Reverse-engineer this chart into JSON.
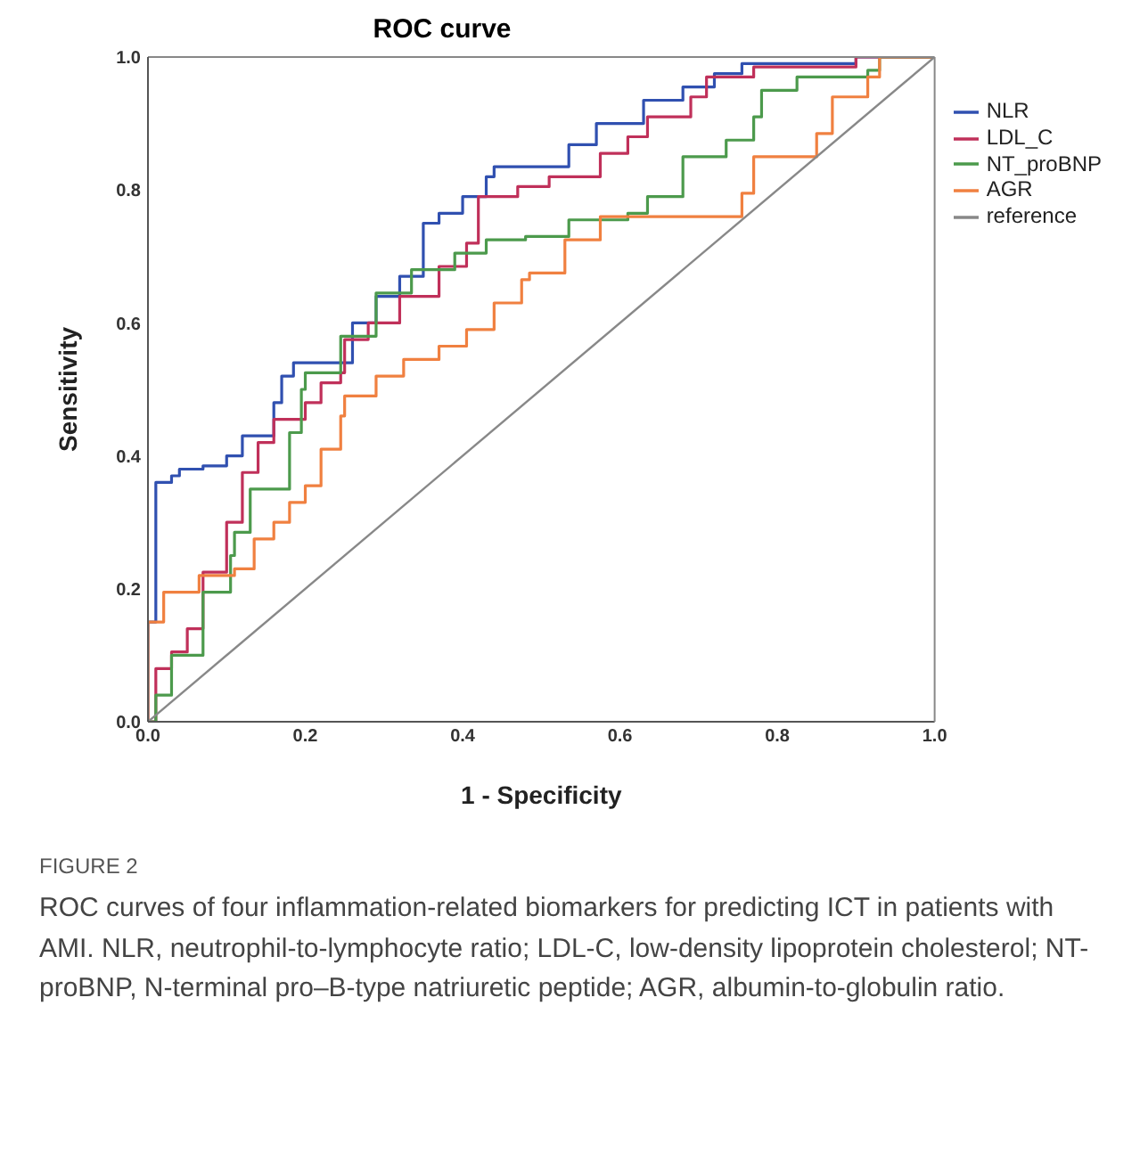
{
  "chart_data": {
    "type": "step",
    "title": "ROC  curve",
    "xlabel": "1 - Specificity",
    "ylabel": "Sensitivity",
    "xlim": [
      0,
      1
    ],
    "ylim": [
      0,
      1
    ],
    "xticks": [
      {
        "value": 0,
        "label": "0.0"
      },
      {
        "value": 0.2,
        "label": "0.2"
      },
      {
        "value": 0.4,
        "label": "0.4"
      },
      {
        "value": 0.6,
        "label": "0.6"
      },
      {
        "value": 0.8,
        "label": "0.8"
      },
      {
        "value": 1,
        "label": "1.0"
      }
    ],
    "yticks": [
      {
        "value": 0,
        "label": "0.0"
      },
      {
        "value": 0.2,
        "label": "0.2"
      },
      {
        "value": 0.4,
        "label": "0.4"
      },
      {
        "value": 0.6,
        "label": "0.6"
      },
      {
        "value": 0.8,
        "label": "0.8"
      },
      {
        "value": 1,
        "label": "1.0"
      }
    ],
    "legend": "right",
    "marker": "none",
    "line_style": "solid",
    "series": [
      {
        "name": "NLR",
        "color": "#3050b0",
        "x": [
          0,
          0,
          0.01,
          0.01,
          0.03,
          0.04,
          0.07,
          0.1,
          0.12,
          0.155,
          0.16,
          0.17,
          0.185,
          0.23,
          0.26,
          0.29,
          0.32,
          0.35,
          0.37,
          0.4,
          0.43,
          0.44,
          0.52,
          0.535,
          0.57,
          0.63,
          0.68,
          0.72,
          0.755,
          0.9,
          1
        ],
        "values": [
          0,
          0.15,
          0.31,
          0.36,
          0.37,
          0.38,
          0.385,
          0.4,
          0.43,
          0.43,
          0.48,
          0.52,
          0.54,
          0.54,
          0.6,
          0.64,
          0.67,
          0.75,
          0.765,
          0.79,
          0.82,
          0.835,
          0.835,
          0.868,
          0.9,
          0.935,
          0.955,
          0.975,
          0.99,
          1,
          1
        ]
      },
      {
        "name": "LDL_C",
        "color": "#c0305a",
        "x": [
          0,
          0.01,
          0.03,
          0.05,
          0.07,
          0.1,
          0.12,
          0.14,
          0.16,
          0.2,
          0.22,
          0.245,
          0.25,
          0.28,
          0.32,
          0.37,
          0.405,
          0.42,
          0.47,
          0.51,
          0.575,
          0.61,
          0.635,
          0.69,
          0.71,
          0.77,
          0.9,
          1
        ],
        "values": [
          0,
          0.08,
          0.105,
          0.14,
          0.225,
          0.3,
          0.375,
          0.42,
          0.455,
          0.48,
          0.51,
          0.525,
          0.575,
          0.6,
          0.64,
          0.685,
          0.72,
          0.79,
          0.805,
          0.82,
          0.855,
          0.88,
          0.91,
          0.94,
          0.97,
          0.985,
          1,
          1
        ]
      },
      {
        "name": "NT_proBNP",
        "color": "#4c9a4c",
        "x": [
          0,
          0.01,
          0.03,
          0.05,
          0.07,
          0.105,
          0.11,
          0.13,
          0.16,
          0.18,
          0.195,
          0.2,
          0.245,
          0.26,
          0.29,
          0.335,
          0.39,
          0.43,
          0.48,
          0.535,
          0.61,
          0.635,
          0.68,
          0.735,
          0.77,
          0.78,
          0.825,
          0.915,
          0.93,
          1
        ],
        "values": [
          0,
          0.04,
          0.1,
          0.1,
          0.195,
          0.25,
          0.285,
          0.35,
          0.35,
          0.435,
          0.5,
          0.525,
          0.58,
          0.58,
          0.645,
          0.68,
          0.705,
          0.725,
          0.73,
          0.755,
          0.765,
          0.79,
          0.85,
          0.875,
          0.91,
          0.95,
          0.97,
          0.98,
          1,
          1
        ]
      },
      {
        "name": "AGR",
        "color": "#f08040",
        "x": [
          0,
          0,
          0.02,
          0.05,
          0.065,
          0.11,
          0.135,
          0.16,
          0.18,
          0.2,
          0.22,
          0.245,
          0.25,
          0.29,
          0.325,
          0.37,
          0.405,
          0.44,
          0.475,
          0.485,
          0.53,
          0.575,
          0.665,
          0.755,
          0.77,
          0.85,
          0.87,
          0.915,
          0.93,
          1
        ],
        "values": [
          0,
          0.15,
          0.195,
          0.195,
          0.22,
          0.23,
          0.275,
          0.3,
          0.33,
          0.355,
          0.41,
          0.46,
          0.49,
          0.52,
          0.545,
          0.565,
          0.59,
          0.63,
          0.665,
          0.675,
          0.725,
          0.76,
          0.76,
          0.795,
          0.85,
          0.885,
          0.94,
          0.97,
          1,
          1
        ]
      },
      {
        "name": "reference",
        "type": "line",
        "color": "#888888",
        "x": [
          0,
          1
        ],
        "values": [
          0,
          1
        ]
      }
    ],
    "annotations": [
      "FIGURE 2",
      "ROC curves of four inflammation-related biomarkers for predicting ICT in patients with AMI. NLR, neutrophil-to-lymphocyte ratio; LDL-C, low-density lipoprotein cholesterol; NT-proBNP, N-terminal pro–B-type natriuretic peptide; AGR, albumin-to-globulin ratio."
    ]
  }
}
